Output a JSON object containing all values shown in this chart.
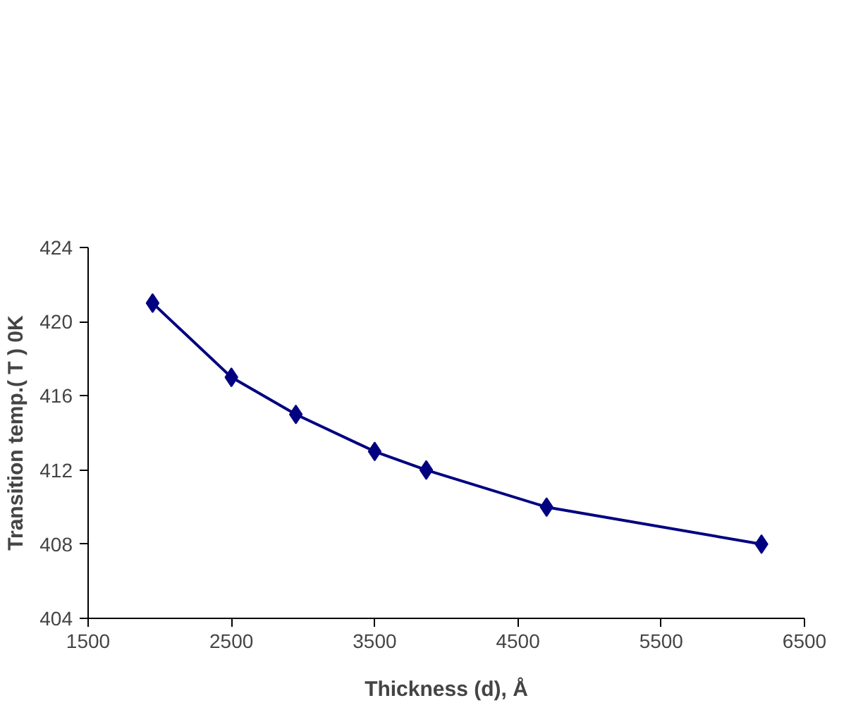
{
  "chart_data": {
    "type": "line",
    "xlabel": "Thickness (d), Å",
    "ylabel": "Transition temp.( T ) 0K",
    "x": [
      1950,
      2500,
      2950,
      3500,
      3860,
      4700,
      6200
    ],
    "series": [
      {
        "color": "#000080",
        "values": [
          421,
          417,
          415,
          413,
          412,
          410,
          408
        ]
      }
    ],
    "xlim": [
      1500,
      6500
    ],
    "xticks": [
      1500,
      2500,
      3500,
      4500,
      5500,
      6500
    ],
    "ylim": [
      404,
      424
    ],
    "yticks": [
      404,
      408,
      412,
      416,
      420,
      424
    ],
    "grid": false,
    "marker": "diamond",
    "line_style": "solid"
  }
}
